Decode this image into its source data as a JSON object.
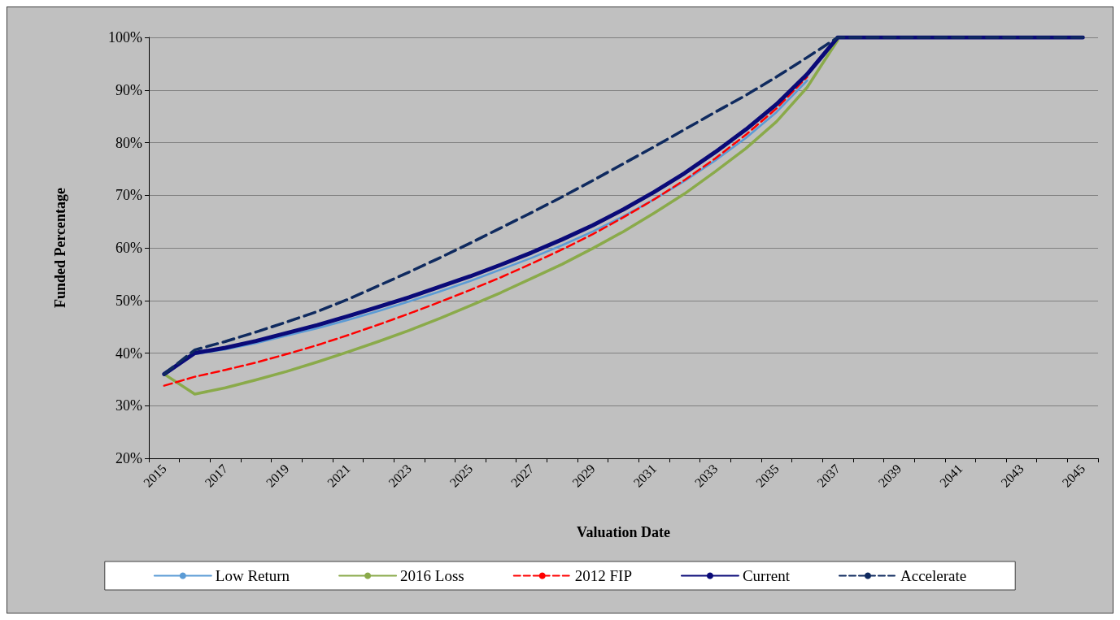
{
  "chart_data": {
    "type": "line",
    "xlabel": "Valuation Date",
    "ylabel": "Funded Percentage",
    "categories": [
      "2015",
      null,
      "2017",
      null,
      "2019",
      null,
      "2021",
      null,
      "2023",
      null,
      "2025",
      null,
      "2027",
      null,
      "2029",
      null,
      "2031",
      null,
      "2033",
      null,
      "2035",
      null,
      "2037",
      null,
      "2039",
      null,
      "2041",
      null,
      "2043",
      null,
      "2045"
    ],
    "series": [
      {
        "name": "Low Return",
        "color": "#5b9bd5",
        "line_style": "solid",
        "values": [
          36,
          39.8,
          40.7,
          41.9,
          43.3,
          44.7,
          46.3,
          48,
          49.8,
          51.7,
          53.7,
          55.9,
          58.1,
          60.5,
          63.1,
          66,
          69.2,
          72.7,
          76.6,
          80.9,
          85.8,
          91.8,
          null,
          null,
          null,
          null,
          null,
          null,
          null,
          null,
          null
        ]
      },
      {
        "name": "2016 Loss",
        "color": "#8aaa4a",
        "line_style": "solid",
        "values": [
          36,
          32.2,
          33.4,
          34.9,
          36.5,
          38.3,
          40.2,
          42.2,
          44.3,
          46.6,
          49,
          51.5,
          54.2,
          56.9,
          59.9,
          63.1,
          66.6,
          70.3,
          74.5,
          78.9,
          84,
          90.5,
          99.5,
          null,
          null,
          null,
          null,
          null,
          null,
          null,
          null
        ]
      },
      {
        "name": "2012 FIP",
        "color": "#ff0000",
        "line_style": "dashed",
        "values": [
          33.8,
          35.5,
          36.8,
          38.2,
          39.8,
          41.5,
          43.4,
          45.4,
          47.5,
          49.7,
          52,
          54.4,
          57,
          59.7,
          62.6,
          65.8,
          69.2,
          72.9,
          77,
          81.5,
          86.5,
          92.5,
          null,
          null,
          null,
          null,
          null,
          null,
          null,
          null,
          null
        ]
      },
      {
        "name": "Current",
        "color": "#0a0a78",
        "line_style": "solid",
        "values": [
          36,
          40,
          41,
          42.3,
          43.8,
          45.3,
          47,
          48.8,
          50.6,
          52.6,
          54.6,
          56.8,
          59.1,
          61.6,
          64.3,
          67.3,
          70.6,
          74.2,
          78.2,
          82.5,
          87.3,
          93,
          100,
          100,
          100,
          100,
          100,
          100,
          100,
          100,
          100
        ]
      },
      {
        "name": "Accelerate",
        "color": "#0f2a5f",
        "line_style": "dashed",
        "values": [
          36,
          40.6,
          42.2,
          44,
          45.9,
          47.9,
          50.2,
          52.8,
          55.4,
          58.1,
          60.9,
          63.8,
          66.7,
          69.7,
          72.8,
          76,
          79.2,
          82.5,
          85.8,
          89,
          92.5,
          96.2,
          100,
          100,
          100,
          100,
          100,
          100,
          100,
          100,
          100
        ]
      }
    ],
    "ylim": [
      20,
      100
    ],
    "yticks": [
      {
        "value": 20,
        "label": "20%"
      },
      {
        "value": 30,
        "label": "30%"
      },
      {
        "value": 40,
        "label": "40%"
      },
      {
        "value": 50,
        "label": "50%"
      },
      {
        "value": 60,
        "label": "60%"
      },
      {
        "value": 70,
        "label": "70%"
      },
      {
        "value": 80,
        "label": "80%"
      },
      {
        "value": 90,
        "label": "90%"
      },
      {
        "value": 100,
        "label": "100%"
      }
    ],
    "grid": "y",
    "legend": "bottom",
    "marker": "none"
  }
}
